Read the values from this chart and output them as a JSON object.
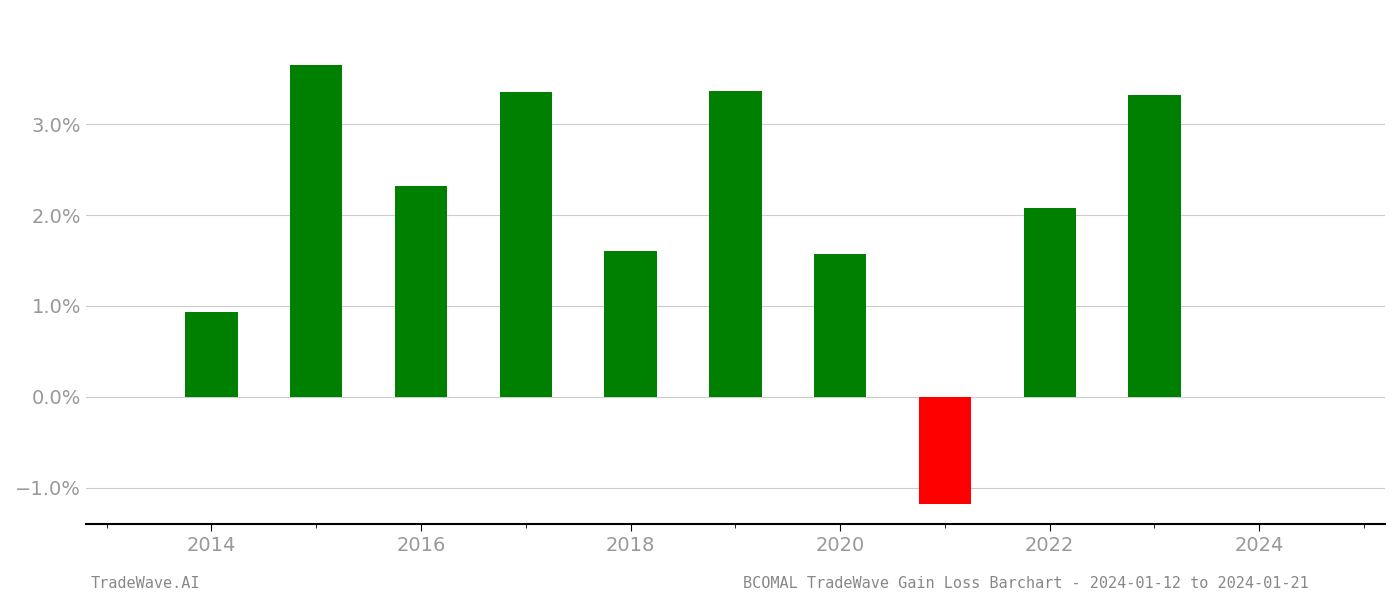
{
  "years": [
    2014,
    2015,
    2016,
    2017,
    2018,
    2019,
    2020,
    2021,
    2022,
    2023
  ],
  "values": [
    0.0093,
    0.0365,
    0.0232,
    0.0335,
    0.016,
    0.0336,
    0.0157,
    -0.0118,
    0.0208,
    0.0332
  ],
  "bar_colors": [
    "#008000",
    "#008000",
    "#008000",
    "#008000",
    "#008000",
    "#008000",
    "#008000",
    "#ff0000",
    "#008000",
    "#008000"
  ],
  "bar_width": 0.5,
  "ylim": [
    -0.014,
    0.042
  ],
  "yticks": [
    -0.01,
    0.0,
    0.01,
    0.02,
    0.03
  ],
  "xlim": [
    2012.8,
    2025.2
  ],
  "xlabel_ticks": [
    2014,
    2016,
    2018,
    2020,
    2022,
    2024
  ],
  "background_color": "#ffffff",
  "grid_color": "#cccccc",
  "axis_color": "#000000",
  "tick_label_color": "#999999",
  "footer_color": "#888888",
  "footer_left": "TradeWave.AI",
  "footer_right": "BCOMAL TradeWave Gain Loss Barchart - 2024-01-12 to 2024-01-21",
  "footer_fontsize": 11,
  "tick_fontsize": 14
}
